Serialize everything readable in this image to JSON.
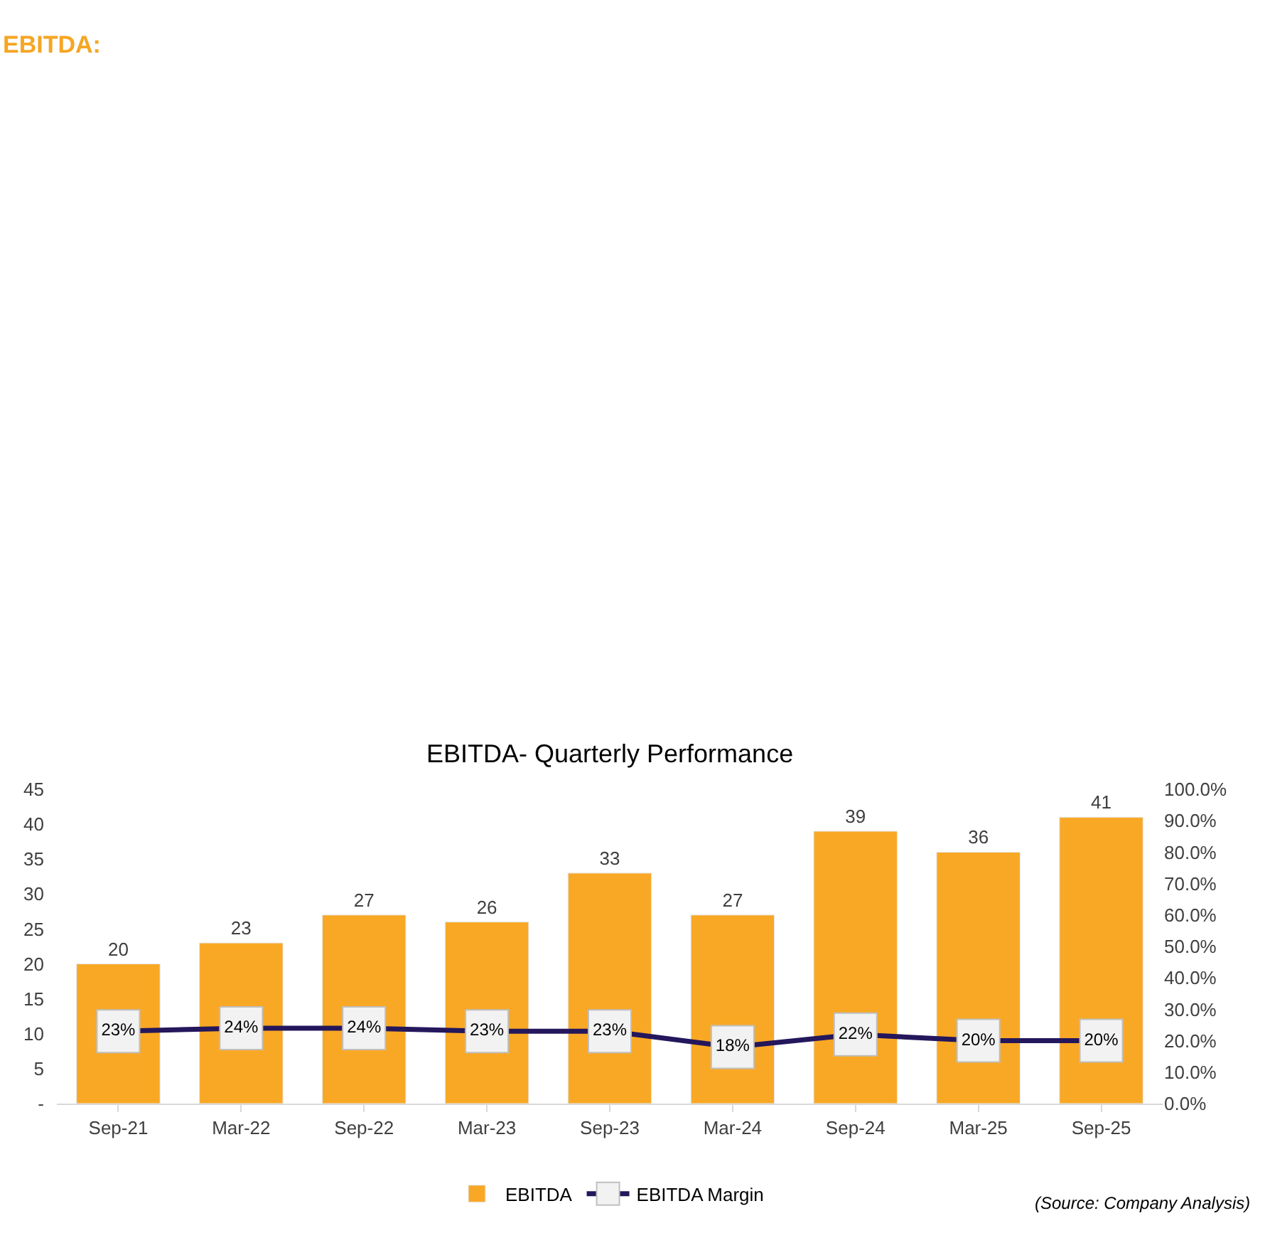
{
  "chart_data": {
    "type": "bar",
    "title": "EBITDA- Quarterly Performance",
    "categories": [
      "Sep-21",
      "Mar-22",
      "Sep-22",
      "Mar-23",
      "Sep-23",
      "Mar-24",
      "Sep-24",
      "Mar-25",
      "Sep-25"
    ],
    "series": [
      {
        "name": "EBITDA",
        "color": "#f9a825",
        "values": [
          20,
          23,
          27,
          26,
          33,
          27,
          39,
          36,
          41
        ]
      },
      {
        "name": "EBITDA Margin",
        "type": "line",
        "axis": "y2",
        "color": "#24175c",
        "marker": "square",
        "values": [
          23,
          24,
          24,
          23,
          23,
          18,
          22,
          20,
          20
        ],
        "value_labels": [
          "23%",
          "24%",
          "24%",
          "23%",
          "23%",
          "18%",
          "22%",
          "20%",
          "20%"
        ]
      }
    ],
    "data_labels": true,
    "ylim": [
      0,
      45
    ],
    "yticks": [
      {
        "value": 0,
        "label": "-"
      },
      5,
      10,
      15,
      20,
      25,
      30,
      35,
      40,
      45
    ],
    "y2lim": [
      0,
      100
    ],
    "y2ticks": [
      {
        "value": 0,
        "label": "0.0%"
      },
      {
        "value": 10,
        "label": "10.0%"
      },
      {
        "value": 20,
        "label": "20.0%"
      },
      {
        "value": 30,
        "label": "30.0%"
      },
      {
        "value": 40,
        "label": "40.0%"
      },
      {
        "value": 50,
        "label": "50.0%"
      },
      {
        "value": 60,
        "label": "60.0%"
      },
      {
        "value": 70,
        "label": "70.0%"
      },
      {
        "value": 80,
        "label": "80.0%"
      },
      {
        "value": 90,
        "label": "90.0%"
      },
      {
        "value": 100,
        "label": "100.0%"
      }
    ],
    "grid": false,
    "legend": "bottom",
    "line_style": "solid",
    "annotations": [
      "EBITDA:",
      "(Source: Company Analysis)"
    ]
  }
}
